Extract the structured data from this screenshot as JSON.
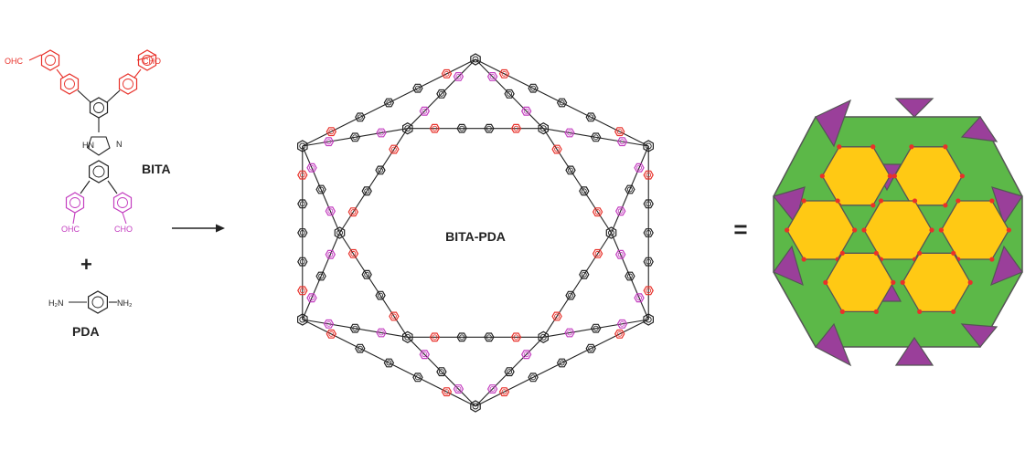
{
  "monomer": {
    "aldehyde_label": "OHC",
    "aldehyde_label_r": "CHO",
    "nh_label": "HN",
    "n_label": "N",
    "name": "BITA",
    "plus": "+",
    "amine_left": "H₂N",
    "amine_right": "NH₂",
    "amine_name": "PDA"
  },
  "framework": {
    "name": "BITA-PDA"
  },
  "equals": "=",
  "colors": {
    "red": "#e8312a",
    "magenta": "#c43fc0",
    "black": "#222222",
    "tile_green": "#5cb848",
    "tile_purple": "#9a3f9a",
    "tile_yellow": "#ffc914",
    "tile_edge": "#555555",
    "vertex": "#e8312a"
  }
}
